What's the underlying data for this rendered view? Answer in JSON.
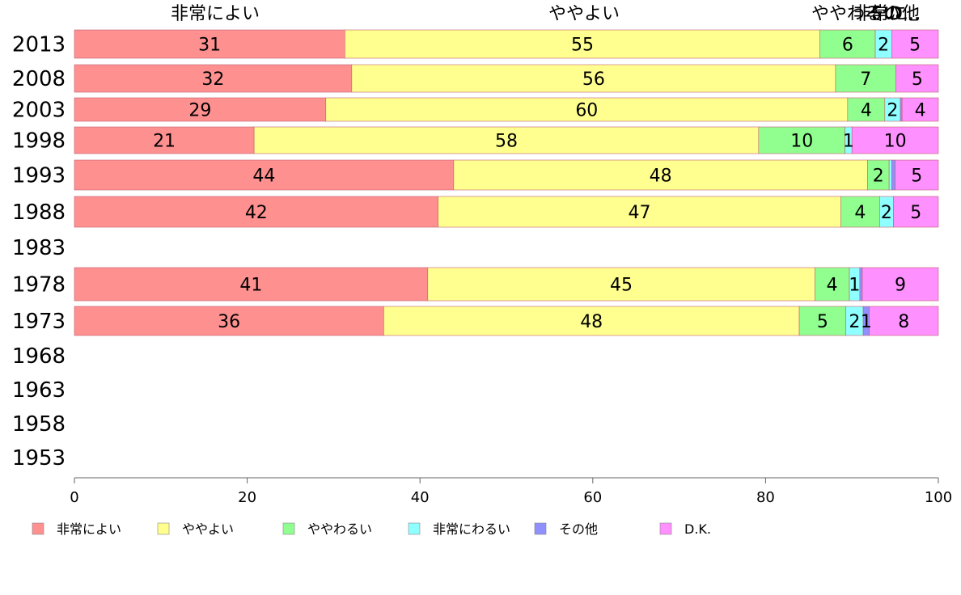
{
  "chart_data": {
    "type": "bar",
    "orientation": "horizontal",
    "stacked": true,
    "xlim": [
      0,
      100
    ],
    "x_ticks": [
      "0",
      "20",
      "40",
      "60",
      "80",
      "100"
    ],
    "top_labels": [
      "非常によい",
      "ややよい",
      "ややわるい",
      "非常に",
      "その他",
      "D..."
    ],
    "categories": [
      "2013",
      "2008",
      "2003",
      "1998",
      "1993",
      "1988",
      "1983",
      "1978",
      "1973",
      "1968",
      "1963",
      "1958",
      "1953"
    ],
    "series": [
      {
        "name": "非常によい",
        "color": "#ff9090",
        "values": [
          31.3,
          32.1,
          29.1,
          20.8,
          43.9,
          42.1,
          null,
          40.9,
          35.8,
          null,
          null,
          null,
          null
        ],
        "labels": [
          "31",
          "32",
          "29",
          "21",
          "44",
          "42",
          "",
          "41",
          "36",
          "",
          "",
          "",
          ""
        ]
      },
      {
        "name": "ややよい",
        "color": "#ffff90",
        "values": [
          55.0,
          56.0,
          60.4,
          58.4,
          47.9,
          46.6,
          null,
          44.8,
          48.1,
          null,
          null,
          null,
          null
        ],
        "labels": [
          "55",
          "56",
          "60",
          "58",
          "48",
          "47",
          "",
          "45",
          "48",
          "",
          "",
          "",
          ""
        ]
      },
      {
        "name": "ややわるい",
        "color": "#90ff90",
        "values": [
          6.4,
          7.0,
          4.3,
          10.0,
          2.5,
          4.5,
          null,
          4.0,
          5.4,
          null,
          null,
          null,
          null
        ],
        "labels": [
          "6",
          "7",
          "4",
          "10",
          "2",
          "4",
          "",
          "4",
          "5",
          "",
          "",
          "",
          ""
        ]
      },
      {
        "name": "非常にわるい",
        "color": "#90ffff",
        "values": [
          1.9,
          0.0,
          1.8,
          0.8,
          0.3,
          1.6,
          null,
          1.2,
          2.0,
          null,
          null,
          null,
          null
        ],
        "labels": [
          "2",
          "",
          "2",
          "1",
          "",
          "2",
          "",
          "1",
          "2",
          "",
          "",
          "",
          ""
        ]
      },
      {
        "name": "その他",
        "color": "#9090ff",
        "values": [
          0.0,
          0.0,
          0.2,
          0.0,
          0.4,
          0.0,
          null,
          0.3,
          0.7,
          null,
          null,
          null,
          null
        ],
        "labels": [
          "",
          "",
          "",
          "",
          "",
          "",
          "",
          "",
          "1",
          "",
          "",
          "",
          ""
        ]
      },
      {
        "name": "D.K.",
        "color": "#ff90ff",
        "values": [
          5.4,
          4.9,
          4.2,
          10.0,
          5.0,
          5.2,
          null,
          8.8,
          8.0,
          null,
          null,
          null,
          null
        ],
        "labels": [
          "5",
          "5",
          "4",
          "10",
          "5",
          "5",
          "",
          "9",
          "8",
          "",
          "",
          "",
          ""
        ]
      }
    ],
    "legend": [
      "非常によい",
      "ややよい",
      "ややわるい",
      "非常にわるい",
      "その他",
      "D.K."
    ],
    "legend_position": "bottom",
    "grid": false
  }
}
